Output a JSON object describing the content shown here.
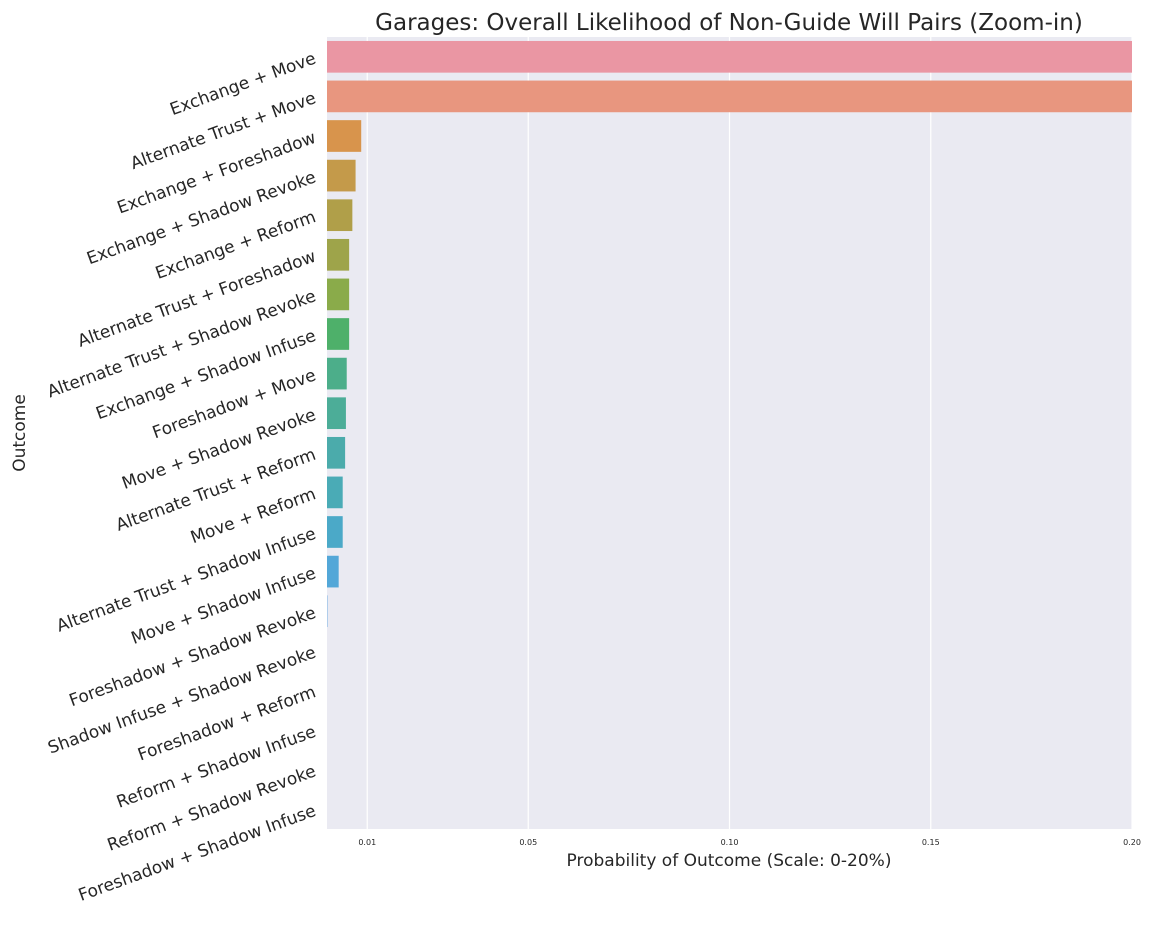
{
  "chart_data": {
    "type": "bar",
    "orientation": "horizontal",
    "title": "Garages: Overall Likelihood of Non-Guide Will Pairs (Zoom-in)",
    "xlabel": "Probability of Outcome (Scale: 0-20%)",
    "ylabel": "Outcome",
    "xlim": [
      0.0,
      0.2
    ],
    "xticks": [
      0.01,
      0.05,
      0.1,
      0.15,
      0.2
    ],
    "xtick_labels": [
      "0.01",
      "0.05",
      "0.10",
      "0.15",
      "0.20"
    ],
    "grid": true,
    "categories": [
      "Exchange + Move",
      "Alternate Trust + Move",
      "Exchange + Foreshadow",
      "Exchange + Shadow Revoke",
      "Exchange + Reform",
      "Alternate Trust + Foreshadow",
      "Alternate Trust + Shadow Revoke",
      "Exchange + Shadow Infuse",
      "Foreshadow + Move",
      "Move + Shadow Revoke",
      "Alternate Trust + Reform",
      "Move + Reform",
      "Alternate Trust + Shadow Infuse",
      "Move + Shadow Infuse",
      "Foreshadow + Shadow Revoke",
      "Shadow Infuse + Shadow Revoke",
      "Foreshadow + Reform",
      "Reform + Shadow Infuse",
      "Reform + Shadow Revoke",
      "Foreshadow + Shadow Infuse"
    ],
    "values": [
      0.2,
      0.2,
      0.0085,
      0.0071,
      0.0063,
      0.0055,
      0.0055,
      0.0055,
      0.0049,
      0.0047,
      0.0045,
      0.0039,
      0.0039,
      0.0029,
      0.0001,
      0.0,
      0.0,
      0.0,
      0.0,
      0.0
    ],
    "colors": [
      "#ea96a3",
      "#e8967f",
      "#d8944c",
      "#c49a4a",
      "#b09f49",
      "#9ea44a",
      "#8aab4a",
      "#4eb06a",
      "#4cae8a",
      "#4cad98",
      "#4babab",
      "#4aabb6",
      "#4ba9c8",
      "#53a7d8",
      "#5aa2e0",
      "#6ca0e6",
      "#8a9be8",
      "#a596e9",
      "#bd8fe6",
      "#d48de0"
    ]
  }
}
